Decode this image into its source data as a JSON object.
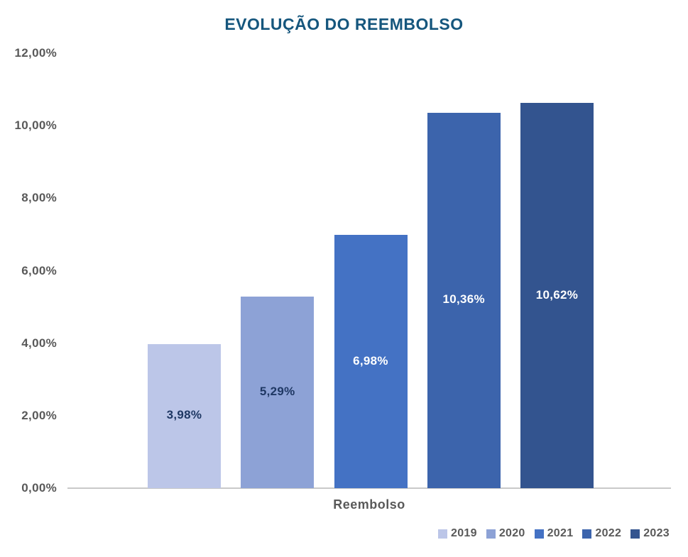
{
  "chart_data": {
    "type": "bar",
    "title": "EVOLUÇÃO DO REEMBOLSO",
    "xlabel": "Reembolso",
    "ylabel": "",
    "ylim": [
      0,
      12
    ],
    "grid": false,
    "legend_position": "bottom-right",
    "y_ticks": [
      {
        "value": 12,
        "label": "12,00%"
      },
      {
        "value": 10,
        "label": "10,00%"
      },
      {
        "value": 8,
        "label": "8,00%"
      },
      {
        "value": 6,
        "label": "6,00%"
      },
      {
        "value": 4,
        "label": "4,00%"
      },
      {
        "value": 2,
        "label": "2,00%"
      },
      {
        "value": 0,
        "label": "0,00%"
      }
    ],
    "categories": [
      "2019",
      "2020",
      "2021",
      "2022",
      "2023"
    ],
    "values": [
      3.98,
      5.29,
      6.98,
      10.36,
      10.62
    ],
    "value_labels": [
      "3,98%",
      "5,29%",
      "6,98%",
      "10,36%",
      "10,62%"
    ],
    "series_colors": [
      "#bcc6e8",
      "#8da2d6",
      "#4472c4",
      "#3c64ac",
      "#33548f"
    ],
    "value_label_colors": [
      "#1f3864",
      "#1f3864",
      "#ffffff",
      "#ffffff",
      "#ffffff"
    ],
    "legend": [
      "2019",
      "2020",
      "2021",
      "2022",
      "2023"
    ]
  },
  "colors": {
    "title": "#15567d",
    "axis_text": "#595959",
    "axis_line": "#c9c9c9",
    "background": "#ffffff"
  }
}
